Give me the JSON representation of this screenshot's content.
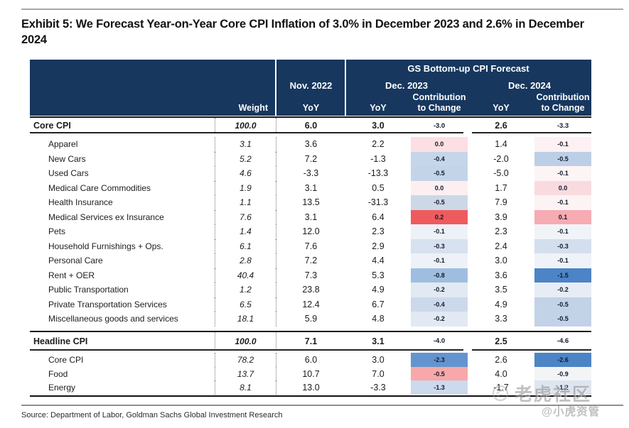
{
  "page": {
    "title": "Exhibit 5: We Forecast Year-on-Year Core CPI Inflation of 3.0% in December 2023 and 2.6% in December 2024",
    "source": "Source: Department of Labor, Goldman Sachs Global Investment Research"
  },
  "watermark": {
    "brand": "老虎社区",
    "handle": "@小虎资管",
    "logo": "tiger-circle-logo"
  },
  "colors": {
    "header_bg": "#17375E",
    "strong_red": "#EE5B5E",
    "strong_blue": "#4C84C6",
    "medium_blue": "#9FBEDF"
  },
  "table": {
    "header": {
      "group": "GS Bottom-up CPI Forecast",
      "weight": "Weight",
      "nov2022": "Nov. 2022",
      "dec2023": "Dec. 2023",
      "dec2024": "Dec. 2024",
      "yoy": "YoY",
      "contrib_line1": "Contribution",
      "contrib_line2": "to Change"
    },
    "core": {
      "label": "Core CPI",
      "weight": "100.0",
      "nov": "6.0",
      "d23_yoy": "3.0",
      "d23_c": "-3.0",
      "d23_bg": "",
      "d24_yoy": "2.6",
      "d24_c": "-3.3",
      "d24_bg": ""
    },
    "core_items": [
      {
        "label": "Apparel",
        "weight": "3.1",
        "nov": "3.6",
        "d23_yoy": "2.2",
        "d23_c": "0.0",
        "d23_bg": "#fbdfe3",
        "d24_yoy": "1.4",
        "d24_c": "-0.1",
        "d24_bg": "#fdf1f3"
      },
      {
        "label": "New Cars",
        "weight": "5.2",
        "nov": "7.2",
        "d23_yoy": "-1.3",
        "d23_c": "-0.4",
        "d23_bg": "#c5d6ea",
        "d24_yoy": "-2.0",
        "d24_c": "-0.5",
        "d24_bg": "#bccfe7"
      },
      {
        "label": "Used Cars",
        "weight": "4.6",
        "nov": "-3.3",
        "d23_yoy": "-13.3",
        "d23_c": "-0.5",
        "d23_bg": "#c3d4e9",
        "d24_yoy": "-5.0",
        "d24_c": "-0.1",
        "d24_bg": "#fdf4f5"
      },
      {
        "label": "Medical Care Commodities",
        "weight": "1.9",
        "nov": "3.1",
        "d23_yoy": "0.5",
        "d23_c": "0.0",
        "d23_bg": "#fdeff1",
        "d24_yoy": "1.7",
        "d24_c": "0.0",
        "d24_bg": "#f9dbdf"
      },
      {
        "label": "Health Insurance",
        "weight": "1.1",
        "nov": "13.5",
        "d23_yoy": "-31.3",
        "d23_c": "-0.5",
        "d23_bg": "#cdd8e6",
        "d24_yoy": "7.9",
        "d24_c": "-0.1",
        "d24_bg": "#fdf3f4"
      },
      {
        "label": "Medical Services ex Insurance",
        "weight": "7.6",
        "nov": "3.1",
        "d23_yoy": "6.4",
        "d23_c": "0.2",
        "d23_bg": "#EE5B5E",
        "d24_yoy": "3.9",
        "d24_c": "0.1",
        "d24_bg": "#f7abb2"
      },
      {
        "label": "Pets",
        "weight": "1.4",
        "nov": "12.0",
        "d23_yoy": "2.3",
        "d23_c": "-0.1",
        "d23_bg": "#edf1f8",
        "d24_yoy": "2.3",
        "d24_c": "-0.1",
        "d24_bg": "#f0f4f9"
      },
      {
        "label": "Household Furnishings + Ops.",
        "weight": "6.1",
        "nov": "7.6",
        "d23_yoy": "2.9",
        "d23_c": "-0.3",
        "d23_bg": "#d8e1ef",
        "d24_yoy": "2.4",
        "d24_c": "-0.3",
        "d24_bg": "#d4dfee"
      },
      {
        "label": "Personal Care",
        "weight": "2.8",
        "nov": "7.2",
        "d23_yoy": "4.4",
        "d23_c": "-0.1",
        "d23_bg": "#eef2f8",
        "d24_yoy": "3.0",
        "d24_c": "-0.1",
        "d24_bg": "#eff3f9"
      },
      {
        "label": "Rent + OER",
        "weight": "40.4",
        "nov": "7.3",
        "d23_yoy": "5.3",
        "d23_c": "-0.8",
        "d23_bg": "#9FBEDF",
        "d24_yoy": "3.6",
        "d24_c": "-1.5",
        "d24_bg": "#4C84C6"
      },
      {
        "label": "Public Transportation",
        "weight": "1.2",
        "nov": "23.8",
        "d23_yoy": "4.9",
        "d23_c": "-0.2",
        "d23_bg": "#e2e9f3",
        "d24_yoy": "3.5",
        "d24_c": "-0.2",
        "d24_bg": "#e7edf5"
      },
      {
        "label": "Private Transportation Services",
        "weight": "6.5",
        "nov": "12.4",
        "d23_yoy": "6.7",
        "d23_c": "-0.4",
        "d23_bg": "#ccd9ea",
        "d24_yoy": "4.9",
        "d24_c": "-0.5",
        "d24_bg": "#c2d2e7"
      },
      {
        "label": "Miscellaneous goods and services",
        "weight": "18.1",
        "nov": "5.9",
        "d23_yoy": "4.8",
        "d23_c": "-0.2",
        "d23_bg": "#e2e9f3",
        "d24_yoy": "3.3",
        "d24_c": "-0.5",
        "d24_bg": "#c2d2e7"
      }
    ],
    "headline": {
      "label": "Headline CPI",
      "weight": "100.0",
      "nov": "7.1",
      "d23_yoy": "3.1",
      "d23_c": "-4.0",
      "d23_bg": "",
      "d24_yoy": "2.5",
      "d24_c": "-4.6",
      "d24_bg": ""
    },
    "headline_items": [
      {
        "label": "Core CPI",
        "weight": "78.2",
        "nov": "6.0",
        "d23_yoy": "3.0",
        "d23_c": "-2.3",
        "d23_bg": "#6494cf",
        "d24_yoy": "2.6",
        "d24_c": "-2.6",
        "d24_bg": "#4C84C6"
      },
      {
        "label": "Food",
        "weight": "13.7",
        "nov": "10.7",
        "d23_yoy": "7.0",
        "d23_c": "-0.5",
        "d23_bg": "#f8a8a8",
        "d24_yoy": "4.0",
        "d24_c": "-0.9",
        "d24_bg": "#f3f4f6"
      },
      {
        "label": "Energy",
        "weight": "8.1",
        "nov": "13.0",
        "d23_yoy": "-3.3",
        "d23_c": "-1.3",
        "d23_bg": "#cdd9ec",
        "d24_yoy": "-1.7",
        "d24_c": "-1.2",
        "d24_bg": "#dde5f1"
      }
    ]
  }
}
